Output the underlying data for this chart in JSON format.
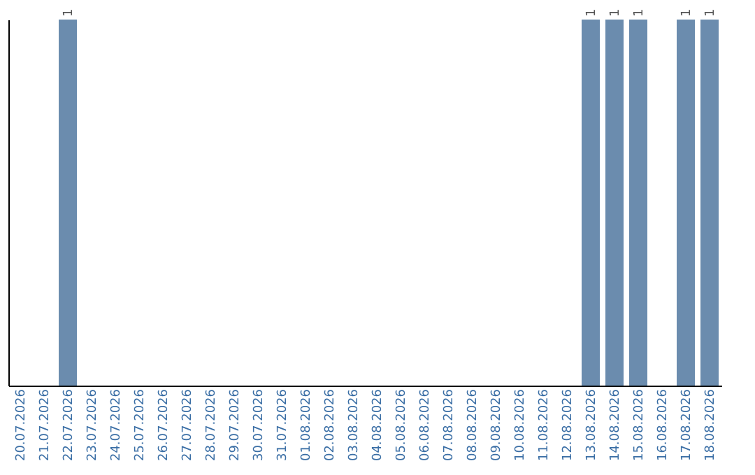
{
  "chart_data": {
    "type": "bar",
    "categories": [
      "20.07.2026",
      "21.07.2026",
      "22.07.2026",
      "23.07.2026",
      "24.07.2026",
      "25.07.2026",
      "26.07.2026",
      "27.07.2026",
      "28.07.2026",
      "29.07.2026",
      "30.07.2026",
      "31.07.2026",
      "01.08.2026",
      "02.08.2026",
      "03.08.2026",
      "04.08.2026",
      "05.08.2026",
      "06.08.2026",
      "07.08.2026",
      "08.08.2026",
      "09.08.2026",
      "10.08.2026",
      "11.08.2026",
      "12.08.2026",
      "13.08.2026",
      "14.08.2026",
      "15.08.2026",
      "16.08.2026",
      "17.08.2026",
      "18.08.2026"
    ],
    "values": [
      null,
      null,
      1,
      null,
      null,
      null,
      null,
      null,
      null,
      null,
      null,
      null,
      null,
      null,
      null,
      null,
      null,
      null,
      null,
      null,
      null,
      null,
      null,
      null,
      1,
      1,
      1,
      null,
      1,
      1
    ],
    "color": "#6b8cae",
    "data_labels": true,
    "tick_labels": "x"
  }
}
